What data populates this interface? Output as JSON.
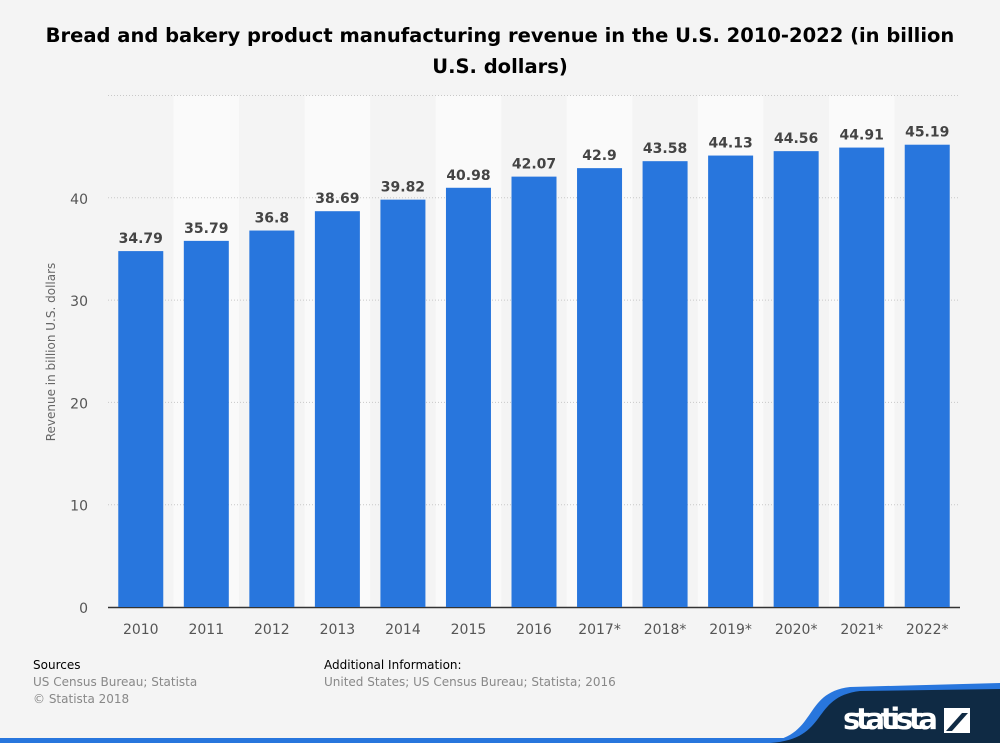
{
  "chart_data": {
    "type": "bar",
    "title": "Bread and bakery product manufacturing revenue in the U.S. 2010-2022 (in billion U.S. dollars)",
    "xlabel": "",
    "ylabel": "Revenue in billion U.S. dollars",
    "categories": [
      "2010",
      "2011",
      "2012",
      "2013",
      "2014",
      "2015",
      "2016",
      "2017*",
      "2018*",
      "2019*",
      "2020*",
      "2021*",
      "2022*"
    ],
    "values": [
      34.79,
      35.79,
      36.8,
      38.69,
      39.82,
      40.98,
      42.07,
      42.9,
      43.58,
      44.13,
      44.56,
      44.91,
      45.19
    ],
    "value_labels": [
      "34.79",
      "35.79",
      "36.8",
      "38.69",
      "39.82",
      "40.98",
      "42.07",
      "42.9",
      "43.58",
      "44.13",
      "44.56",
      "44.91",
      "45.19"
    ],
    "ylim": [
      0,
      50
    ],
    "yticks": [
      0,
      10,
      20,
      30,
      40
    ],
    "grid": true,
    "bar_color": "#2876dd"
  },
  "footer": {
    "sources_heading": "Sources",
    "sources_text": "US Census Bureau; Statista",
    "copyright": "© Statista 2018",
    "additional_heading": "Additional Information:",
    "additional_text": "United States; US Census Bureau; Statista; 2016"
  },
  "logo": {
    "text": "statista"
  }
}
